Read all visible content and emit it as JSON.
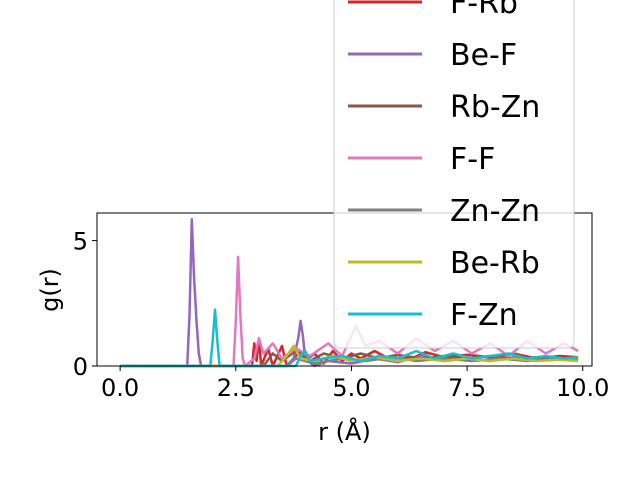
{
  "chart_data": {
    "type": "line",
    "xlabel": "r (Å)",
    "ylabel": "g(r)",
    "xlim": [
      -0.5,
      10.2
    ],
    "ylim": [
      0,
      6.1
    ],
    "x_ticks": [
      "0.0",
      "2.5",
      "5.0",
      "7.5",
      "10.0"
    ],
    "x_tick_values": [
      0,
      2.5,
      5.0,
      7.5,
      10.0
    ],
    "y_ticks": [
      "0",
      "5"
    ],
    "y_tick_values": [
      0,
      5
    ],
    "grid": false,
    "legend_placement": "upper-right",
    "series": [
      {
        "name": "F-Rb",
        "color": "#d62728",
        "points": [
          [
            0,
            0
          ],
          [
            2.85,
            0
          ],
          [
            2.9,
            0.9
          ],
          [
            2.95,
            0.2
          ],
          [
            3.0,
            1.1
          ],
          [
            3.05,
            0
          ],
          [
            3.2,
            0.7
          ],
          [
            3.3,
            0
          ],
          [
            3.5,
            0.8
          ],
          [
            3.6,
            0
          ],
          [
            3.9,
            0.6
          ],
          [
            4.0,
            0.2
          ],
          [
            4.2,
            0.5
          ],
          [
            4.4,
            0.1
          ],
          [
            4.6,
            0.6
          ],
          [
            4.8,
            0.2
          ],
          [
            5.0,
            0.5
          ],
          [
            5.2,
            0.3
          ],
          [
            5.5,
            0.6
          ],
          [
            5.8,
            0.3
          ],
          [
            6.0,
            0.45
          ],
          [
            6.3,
            0.3
          ],
          [
            6.6,
            0.55
          ],
          [
            7.0,
            0.35
          ],
          [
            7.5,
            0.45
          ],
          [
            8.0,
            0.35
          ],
          [
            8.5,
            0.5
          ],
          [
            9.0,
            0.3
          ],
          [
            9.5,
            0.4
          ],
          [
            9.9,
            0.35
          ]
        ]
      },
      {
        "name": "Be-F",
        "color": "#9467bd",
        "points": [
          [
            0,
            0
          ],
          [
            1.45,
            0
          ],
          [
            1.5,
            2.0
          ],
          [
            1.55,
            5.85
          ],
          [
            1.6,
            3.5
          ],
          [
            1.65,
            1.8
          ],
          [
            1.7,
            0.5
          ],
          [
            1.75,
            0
          ],
          [
            3.6,
            0
          ],
          [
            3.75,
            0.3
          ],
          [
            3.85,
            1.1
          ],
          [
            3.9,
            1.8
          ],
          [
            3.95,
            1.2
          ],
          [
            4.0,
            0.3
          ],
          [
            4.2,
            0
          ],
          [
            4.5,
            0.2
          ],
          [
            5.0,
            0.1
          ],
          [
            5.5,
            0.3
          ],
          [
            6.0,
            0.15
          ],
          [
            6.5,
            0.4
          ],
          [
            7.0,
            0.2
          ],
          [
            7.5,
            0.3
          ],
          [
            8.0,
            0.2
          ],
          [
            8.5,
            0.35
          ],
          [
            9.0,
            0.25
          ],
          [
            9.5,
            0.3
          ],
          [
            9.9,
            0.25
          ]
        ]
      },
      {
        "name": "Rb-Zn",
        "color": "#8c564b",
        "points": [
          [
            0,
            0
          ],
          [
            3.1,
            0
          ],
          [
            3.3,
            0.5
          ],
          [
            3.5,
            0.2
          ],
          [
            3.8,
            0.6
          ],
          [
            4.1,
            0.2
          ],
          [
            4.4,
            0.5
          ],
          [
            4.8,
            0.3
          ],
          [
            5.2,
            0.5
          ],
          [
            5.6,
            0.3
          ],
          [
            6.0,
            0.45
          ],
          [
            6.5,
            0.3
          ],
          [
            7.0,
            0.4
          ],
          [
            7.5,
            0.3
          ],
          [
            8.0,
            0.4
          ],
          [
            8.5,
            0.3
          ],
          [
            9.0,
            0.35
          ],
          [
            9.5,
            0.3
          ],
          [
            9.9,
            0.3
          ]
        ]
      },
      {
        "name": "F-F",
        "color": "#e377c2",
        "points": [
          [
            0,
            0
          ],
          [
            2.45,
            0
          ],
          [
            2.5,
            1.8
          ],
          [
            2.55,
            4.35
          ],
          [
            2.6,
            2.0
          ],
          [
            2.65,
            0.3
          ],
          [
            2.7,
            0
          ],
          [
            2.9,
            0.3
          ],
          [
            3.0,
            1.1
          ],
          [
            3.1,
            0.5
          ],
          [
            3.3,
            0.9
          ],
          [
            3.5,
            0.3
          ],
          [
            3.8,
            0.7
          ],
          [
            4.1,
            0.4
          ],
          [
            4.5,
            0.9
          ],
          [
            4.8,
            0.4
          ],
          [
            5.1,
            1.6
          ],
          [
            5.3,
            0.8
          ],
          [
            5.6,
            1.0
          ],
          [
            6.0,
            0.5
          ],
          [
            6.4,
            1.1
          ],
          [
            6.8,
            0.6
          ],
          [
            7.2,
            1.0
          ],
          [
            7.6,
            0.5
          ],
          [
            8.0,
            0.9
          ],
          [
            8.4,
            0.4
          ],
          [
            8.8,
            1.0
          ],
          [
            9.2,
            0.5
          ],
          [
            9.6,
            0.9
          ],
          [
            9.9,
            0.6
          ]
        ]
      },
      {
        "name": "Zn-Zn",
        "color": "#7f7f7f",
        "points": [
          [
            0,
            0
          ],
          [
            3.6,
            0
          ],
          [
            3.8,
            0.3
          ],
          [
            4.2,
            0.1
          ],
          [
            4.8,
            0.3
          ],
          [
            5.3,
            0.2
          ],
          [
            5.9,
            0.35
          ],
          [
            6.4,
            0.2
          ],
          [
            7.0,
            0.3
          ],
          [
            7.6,
            0.2
          ],
          [
            8.2,
            0.3
          ],
          [
            8.8,
            0.2
          ],
          [
            9.4,
            0.3
          ],
          [
            9.9,
            0.25
          ]
        ]
      },
      {
        "name": "Be-Rb",
        "color": "#bcbd22",
        "points": [
          [
            0,
            0
          ],
          [
            3.4,
            0
          ],
          [
            3.6,
            0.4
          ],
          [
            3.75,
            0.8
          ],
          [
            3.9,
            0.3
          ],
          [
            4.2,
            0.2
          ],
          [
            4.6,
            0.4
          ],
          [
            5.0,
            0.2
          ],
          [
            5.5,
            0.35
          ],
          [
            6.0,
            0.2
          ],
          [
            6.5,
            0.3
          ],
          [
            7.0,
            0.2
          ],
          [
            7.5,
            0.3
          ],
          [
            8.0,
            0.2
          ],
          [
            8.5,
            0.3
          ],
          [
            9.0,
            0.2
          ],
          [
            9.5,
            0.25
          ],
          [
            9.9,
            0.2
          ]
        ]
      },
      {
        "name": "F-Zn",
        "color": "#17becf",
        "points": [
          [
            0,
            0
          ],
          [
            1.95,
            0
          ],
          [
            2.0,
            1.0
          ],
          [
            2.05,
            2.25
          ],
          [
            2.1,
            1.0
          ],
          [
            2.15,
            0
          ],
          [
            3.8,
            0
          ],
          [
            3.9,
            0.4
          ],
          [
            4.0,
            0.6
          ],
          [
            4.1,
            0.2
          ],
          [
            4.4,
            0.3
          ],
          [
            4.8,
            0.4
          ],
          [
            5.2,
            0.2
          ],
          [
            5.6,
            0.4
          ],
          [
            6.0,
            0.3
          ],
          [
            6.4,
            0.6
          ],
          [
            6.8,
            0.3
          ],
          [
            7.2,
            0.5
          ],
          [
            7.6,
            0.3
          ],
          [
            8.0,
            0.4
          ],
          [
            8.4,
            0.5
          ],
          [
            8.8,
            0.3
          ],
          [
            9.2,
            0.4
          ],
          [
            9.6,
            0.3
          ],
          [
            9.9,
            0.35
          ]
        ]
      }
    ]
  }
}
